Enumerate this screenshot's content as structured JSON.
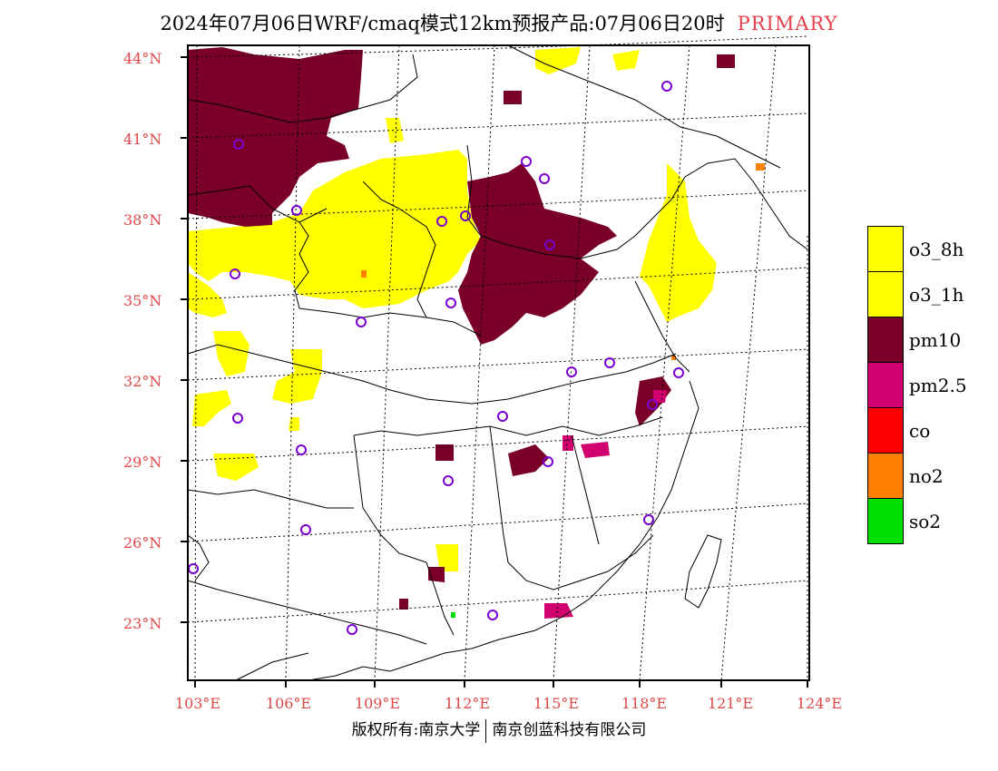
{
  "title": {
    "main": "2024年07月06日WRF/cmaq模式12km预报产品:07月06日20时",
    "tag": "PRIMARY"
  },
  "lat_labels": [
    "44°N",
    "41°N",
    "38°N",
    "35°N",
    "32°N",
    "29°N",
    "26°N",
    "23°N"
  ],
  "lon_labels": [
    "103°E",
    "106°E",
    "109°E",
    "112°E",
    "115°E",
    "118°E",
    "121°E",
    "124°E"
  ],
  "legend": [
    {
      "label": "o3_8h",
      "color": "#ffff00"
    },
    {
      "label": "o3_1h",
      "color": "#ffff00"
    },
    {
      "label": "pm10",
      "color": "#7a0028"
    },
    {
      "label": "pm2.5",
      "color": "#d0006f"
    },
    {
      "label": "co",
      "color": "#ff0000"
    },
    {
      "label": "no2",
      "color": "#ff7f00"
    },
    {
      "label": "so2",
      "color": "#00e000"
    }
  ],
  "footer": {
    "left": "版权所有:南京大学",
    "right": "南京创蓝科技有限公司"
  }
}
